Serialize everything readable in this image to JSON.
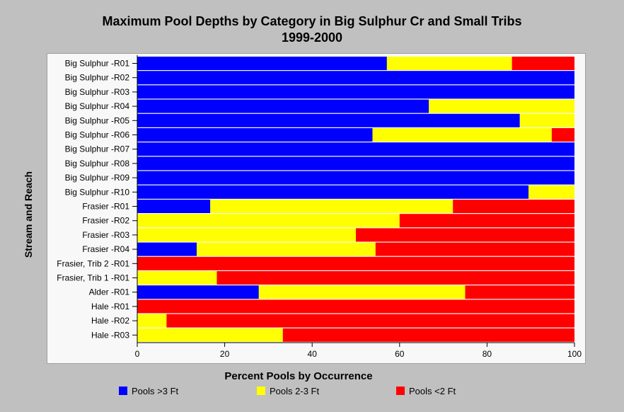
{
  "chart_data": {
    "type": "bar",
    "orientation": "horizontal",
    "stacked": true,
    "title": "Maximum Pool Depths by Category in Big Sulphur Cr and Small Tribs",
    "subtitle": "1999-2000",
    "xlabel": "Percent Pools by Occurrence",
    "ylabel": "Stream and Reach",
    "xlim": [
      0,
      100
    ],
    "xticks": [
      0,
      20,
      40,
      60,
      80,
      100
    ],
    "grid": false,
    "legend_position": "bottom",
    "categories": [
      "Big Sulphur -R01",
      "Big Sulphur -R02",
      "Big Sulphur -R03",
      "Big Sulphur -R04",
      "Big Sulphur -R05",
      "Big Sulphur -R06",
      "Big Sulphur -R07",
      "Big Sulphur -R08",
      "Big Sulphur -R09",
      "Big Sulphur -R10",
      "Frasier -R01",
      "Frasier -R02",
      "Frasier -R03",
      "Frasier -R04",
      "Frasier, Trib 2 -R01",
      "Frasier, Trib 1 -R01",
      "Alder -R01",
      "Hale -R01",
      "Hale -R02",
      "Hale -R03"
    ],
    "series": [
      {
        "name": "Pools >3 Ft",
        "color": "#0000ff",
        "values": [
          57.1,
          100,
          100,
          66.7,
          87.5,
          53.8,
          100,
          100,
          100,
          89.5,
          16.7,
          0,
          0,
          13.6,
          0,
          0,
          27.8,
          0,
          0,
          0
        ]
      },
      {
        "name": "Pools 2-3 Ft",
        "color": "#ffff00",
        "values": [
          28.6,
          0,
          0,
          33.3,
          12.5,
          41.0,
          0,
          0,
          0,
          10.5,
          55.5,
          60.0,
          50.0,
          40.9,
          0,
          18.2,
          47.2,
          0,
          6.7,
          33.3
        ]
      },
      {
        "name": "Pools <2 Ft",
        "color": "#ff0000",
        "values": [
          14.3,
          0,
          0,
          0,
          0,
          5.2,
          0,
          0,
          0,
          0,
          27.8,
          40.0,
          50.0,
          45.5,
          100,
          81.8,
          25.0,
          100,
          93.3,
          66.7
        ]
      }
    ]
  }
}
